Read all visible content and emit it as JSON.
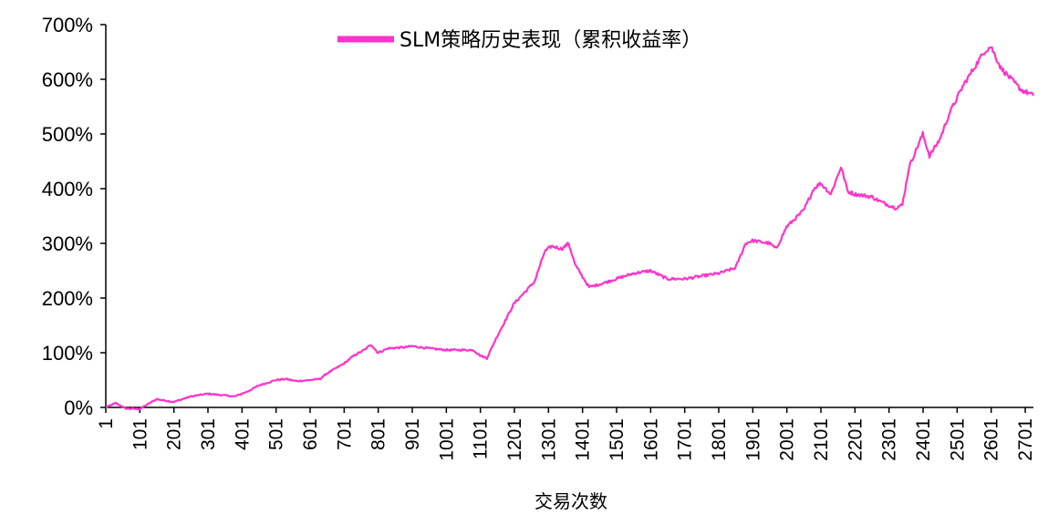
{
  "chart_data": {
    "type": "line",
    "title": "",
    "xlabel": "交易次数",
    "ylabel": "",
    "ylim": [
      0,
      700
    ],
    "xlim": [
      1,
      2725
    ],
    "y_ticks": [
      "0%",
      "100%",
      "200%",
      "300%",
      "400%",
      "500%",
      "600%",
      "700%"
    ],
    "x_ticks": [
      "1",
      "101",
      "201",
      "301",
      "401",
      "501",
      "601",
      "701",
      "801",
      "901",
      "1001",
      "1101",
      "1201",
      "1301",
      "1401",
      "1501",
      "1601",
      "1701",
      "1801",
      "1901",
      "2001",
      "2101",
      "2201",
      "2301",
      "2401",
      "2501",
      "2601",
      "2701"
    ],
    "grid": false,
    "legend": "top-center",
    "colors": {
      "series": "#ff33cc"
    },
    "series": [
      {
        "name": "SLM策略历史表现（累积收益率）",
        "x": [
          1,
          30,
          60,
          100,
          130,
          150,
          180,
          200,
          250,
          300,
          350,
          380,
          420,
          450,
          500,
          530,
          560,
          600,
          630,
          650,
          700,
          730,
          760,
          780,
          800,
          830,
          880,
          900,
          950,
          1000,
          1050,
          1080,
          1100,
          1120,
          1150,
          1200,
          1230,
          1260,
          1290,
          1310,
          1340,
          1360,
          1380,
          1420,
          1450,
          1500,
          1550,
          1600,
          1650,
          1700,
          1750,
          1800,
          1850,
          1880,
          1900,
          1950,
          1970,
          2000,
          2050,
          2080,
          2100,
          2130,
          2160,
          2180,
          2200,
          2250,
          2280,
          2320,
          2340,
          2360,
          2380,
          2400,
          2420,
          2450,
          2480,
          2520,
          2550,
          2580,
          2600,
          2630,
          2660,
          2690,
          2710,
          2725
        ],
        "values": [
          0,
          8,
          -2,
          -3,
          8,
          15,
          12,
          10,
          20,
          25,
          22,
          20,
          30,
          40,
          50,
          52,
          48,
          50,
          52,
          62,
          80,
          95,
          105,
          115,
          100,
          108,
          110,
          112,
          108,
          105,
          105,
          105,
          95,
          90,
          130,
          190,
          210,
          230,
          285,
          295,
          290,
          300,
          260,
          220,
          225,
          235,
          245,
          250,
          235,
          235,
          240,
          245,
          255,
          300,
          305,
          300,
          290,
          330,
          360,
          400,
          410,
          390,
          440,
          395,
          390,
          385,
          375,
          365,
          370,
          440,
          470,
          500,
          460,
          490,
          540,
          590,
          620,
          650,
          660,
          620,
          600,
          580,
          575,
          570
        ]
      }
    ]
  }
}
